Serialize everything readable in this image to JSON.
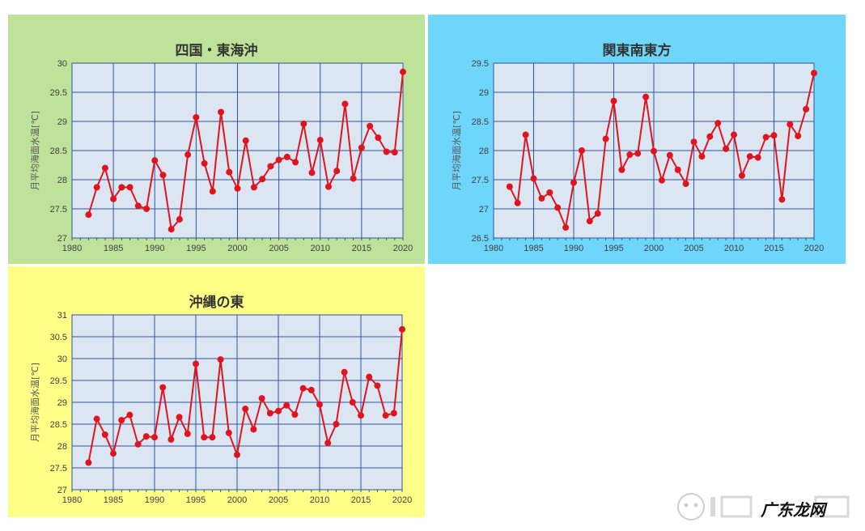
{
  "watermark": "广东龙网",
  "chart_data": [
    {
      "type": "line",
      "title": "四国・東海沖",
      "ylabel": "月平均海面水温[℃]",
      "xlabel": "",
      "background": "#bfe29a",
      "xlim": [
        1980,
        2020
      ],
      "ylim": [
        27,
        30
      ],
      "yticks": [
        "27",
        "27.5",
        "28",
        "28.5",
        "29",
        "29.5",
        "30"
      ],
      "xticks": [
        "1980",
        "1985",
        "1990",
        "1995",
        "2000",
        "2005",
        "2010",
        "2015",
        "2020"
      ],
      "grid": true,
      "series": [
        {
          "color": "#e0141e",
          "x": [
            1982,
            1983,
            1984,
            1985,
            1986,
            1987,
            1988,
            1989,
            1990,
            1991,
            1992,
            1993,
            1994,
            1995,
            1996,
            1997,
            1998,
            1999,
            2000,
            2001,
            2002,
            2003,
            2004,
            2005,
            2006,
            2007,
            2008,
            2009,
            2010,
            2011,
            2012,
            2013,
            2014,
            2015,
            2016,
            2017,
            2018,
            2019,
            2020
          ],
          "values": [
            27.4,
            27.87,
            28.2,
            27.67,
            27.87,
            27.87,
            27.55,
            27.5,
            28.33,
            28.08,
            27.15,
            27.32,
            28.43,
            29.07,
            28.28,
            27.8,
            29.16,
            28.13,
            27.85,
            28.67,
            27.87,
            28.01,
            28.23,
            28.34,
            28.39,
            28.3,
            28.96,
            28.12,
            28.68,
            27.88,
            28.15,
            29.3,
            28.02,
            28.55,
            28.92,
            28.72,
            28.48,
            28.47,
            29.85
          ]
        }
      ]
    },
    {
      "type": "line",
      "title": "関東南東方",
      "ylabel": "月平均海面水温[℃]",
      "xlabel": "",
      "background": "#6fd6fb",
      "xlim": [
        1980,
        2020
      ],
      "ylim": [
        26.5,
        29.5
      ],
      "yticks": [
        "26.5",
        "27",
        "27.5",
        "28",
        "28.5",
        "29",
        "29.5"
      ],
      "xticks": [
        "1980",
        "1985",
        "1990",
        "1995",
        "2000",
        "2005",
        "2010",
        "2015",
        "2020"
      ],
      "grid": true,
      "series": [
        {
          "color": "#e0141e",
          "x": [
            1982,
            1983,
            1984,
            1985,
            1986,
            1987,
            1988,
            1989,
            1990,
            1991,
            1992,
            1993,
            1994,
            1995,
            1996,
            1997,
            1998,
            1999,
            2000,
            2001,
            2002,
            2003,
            2004,
            2005,
            2006,
            2007,
            2008,
            2009,
            2010,
            2011,
            2012,
            2013,
            2014,
            2015,
            2016,
            2017,
            2018,
            2019,
            2020
          ],
          "values": [
            27.38,
            27.1,
            28.27,
            27.52,
            27.18,
            27.28,
            27.02,
            26.68,
            27.45,
            28.0,
            26.79,
            26.92,
            28.2,
            28.85,
            27.67,
            27.93,
            27.95,
            28.92,
            27.99,
            27.49,
            27.92,
            27.67,
            27.43,
            28.15,
            27.9,
            28.24,
            28.47,
            28.03,
            28.27,
            27.57,
            27.9,
            27.88,
            28.23,
            28.26,
            27.16,
            28.45,
            28.25,
            28.71,
            29.33
          ]
        }
      ]
    },
    {
      "type": "line",
      "title": "沖縄の東",
      "ylabel": "月平均海面水温[℃]",
      "xlabel": "",
      "background": "#ffff88",
      "xlim": [
        1980,
        2020
      ],
      "ylim": [
        27,
        31
      ],
      "yticks": [
        "27",
        "27.5",
        "28",
        "28.5",
        "29",
        "29.5",
        "30",
        "30.5",
        "31"
      ],
      "xticks": [
        "1980",
        "1985",
        "1990",
        "1995",
        "2000",
        "2005",
        "2010",
        "2015",
        "2020"
      ],
      "grid": true,
      "series": [
        {
          "color": "#e0141e",
          "x": [
            1982,
            1983,
            1984,
            1985,
            1986,
            1987,
            1988,
            1989,
            1990,
            1991,
            1992,
            1993,
            1994,
            1995,
            1996,
            1997,
            1998,
            1999,
            2000,
            2001,
            2002,
            2003,
            2004,
            2005,
            2006,
            2007,
            2008,
            2009,
            2010,
            2011,
            2012,
            2013,
            2014,
            2015,
            2016,
            2017,
            2018,
            2019,
            2020
          ],
          "values": [
            27.62,
            28.62,
            28.26,
            27.83,
            28.59,
            28.71,
            28.04,
            28.22,
            28.2,
            29.34,
            28.15,
            28.66,
            28.28,
            29.88,
            28.2,
            28.2,
            29.98,
            28.3,
            27.8,
            28.85,
            28.38,
            29.09,
            28.75,
            28.8,
            28.93,
            28.72,
            29.32,
            29.28,
            28.95,
            28.07,
            28.5,
            29.69,
            29.0,
            28.7,
            29.58,
            29.38,
            28.7,
            28.75,
            30.67
          ]
        }
      ]
    }
  ]
}
